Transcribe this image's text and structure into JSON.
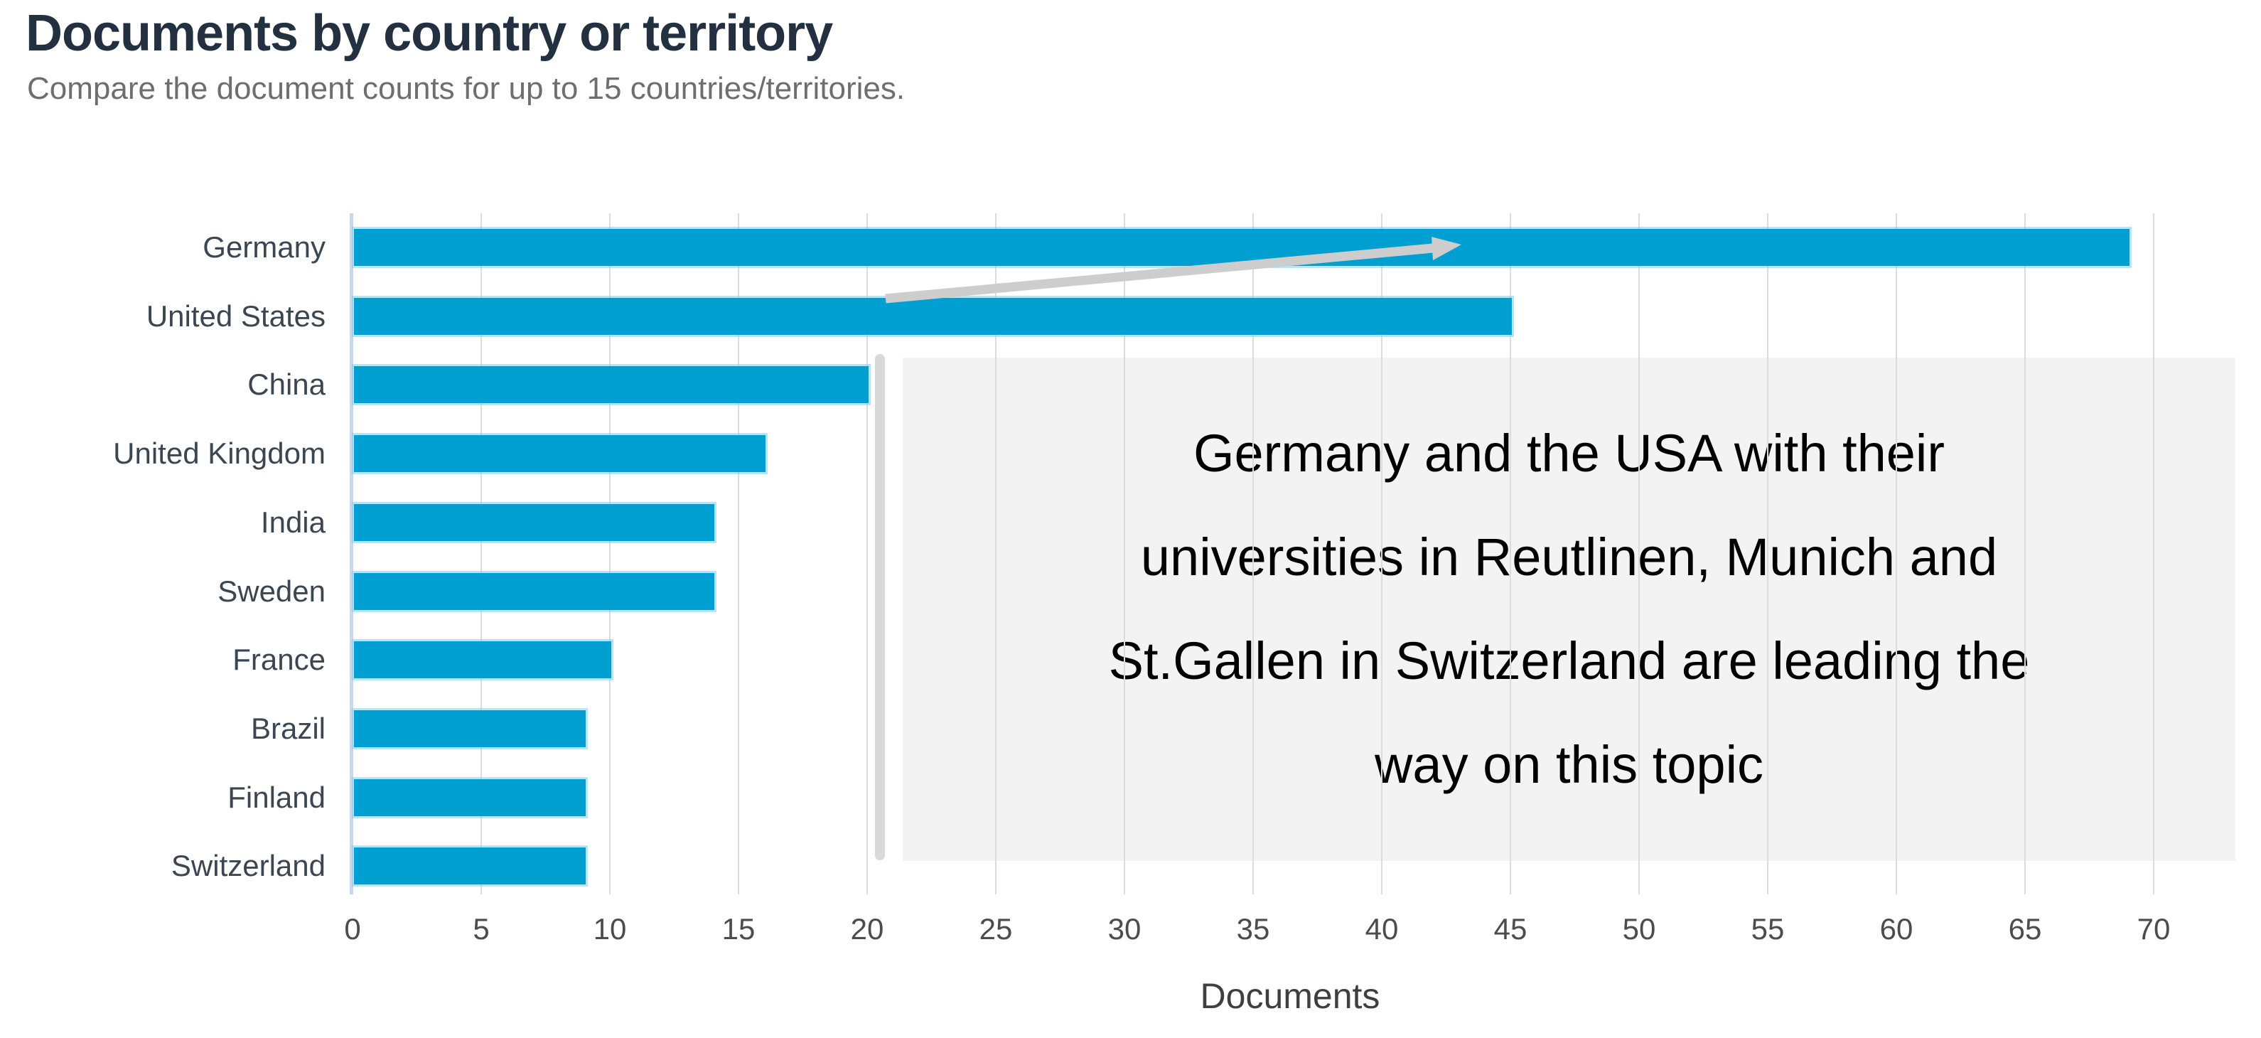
{
  "header": {
    "title": "Documents by country or territory",
    "subtitle": "Compare the document counts for up to 15 countries/territories."
  },
  "chart_data": {
    "type": "bar",
    "orientation": "horizontal",
    "title": "Documents by country or territory",
    "categories": [
      "Germany",
      "United States",
      "China",
      "United Kingdom",
      "India",
      "Sweden",
      "France",
      "Brazil",
      "Finland",
      "Switzerland"
    ],
    "values": [
      69,
      45,
      20,
      16,
      14,
      14,
      10,
      9,
      9,
      9
    ],
    "xlabel": "Documents",
    "ylabel": "",
    "x_ticks": [
      0,
      5,
      10,
      15,
      20,
      25,
      30,
      35,
      40,
      45,
      50,
      55,
      60,
      65,
      70
    ],
    "xlim": [
      0,
      72.8
    ],
    "grid": true,
    "legend": "none",
    "bar_color": "#009fd1",
    "bar_halo_color": "#c7ebf7",
    "gridline_color": "#dcdcdc",
    "axis_line_color": "#ccd6e9"
  },
  "annotation": {
    "lines": [
      "Germany and the USA with their",
      "universities in Reutlinen, Munich and",
      "St.Gallen in Switzerland are leading the",
      "way on this topic"
    ],
    "box_bg": "#f3f3f3",
    "arrow_color": "#cdcdcd",
    "vbar_color": "#d9d9d9"
  },
  "colors": {
    "title": "#22303f",
    "subtitle": "#6e6e6e",
    "category_label": "#3c4650",
    "tick_label": "#4c4c4c",
    "axis_title": "#3f3f3f"
  }
}
